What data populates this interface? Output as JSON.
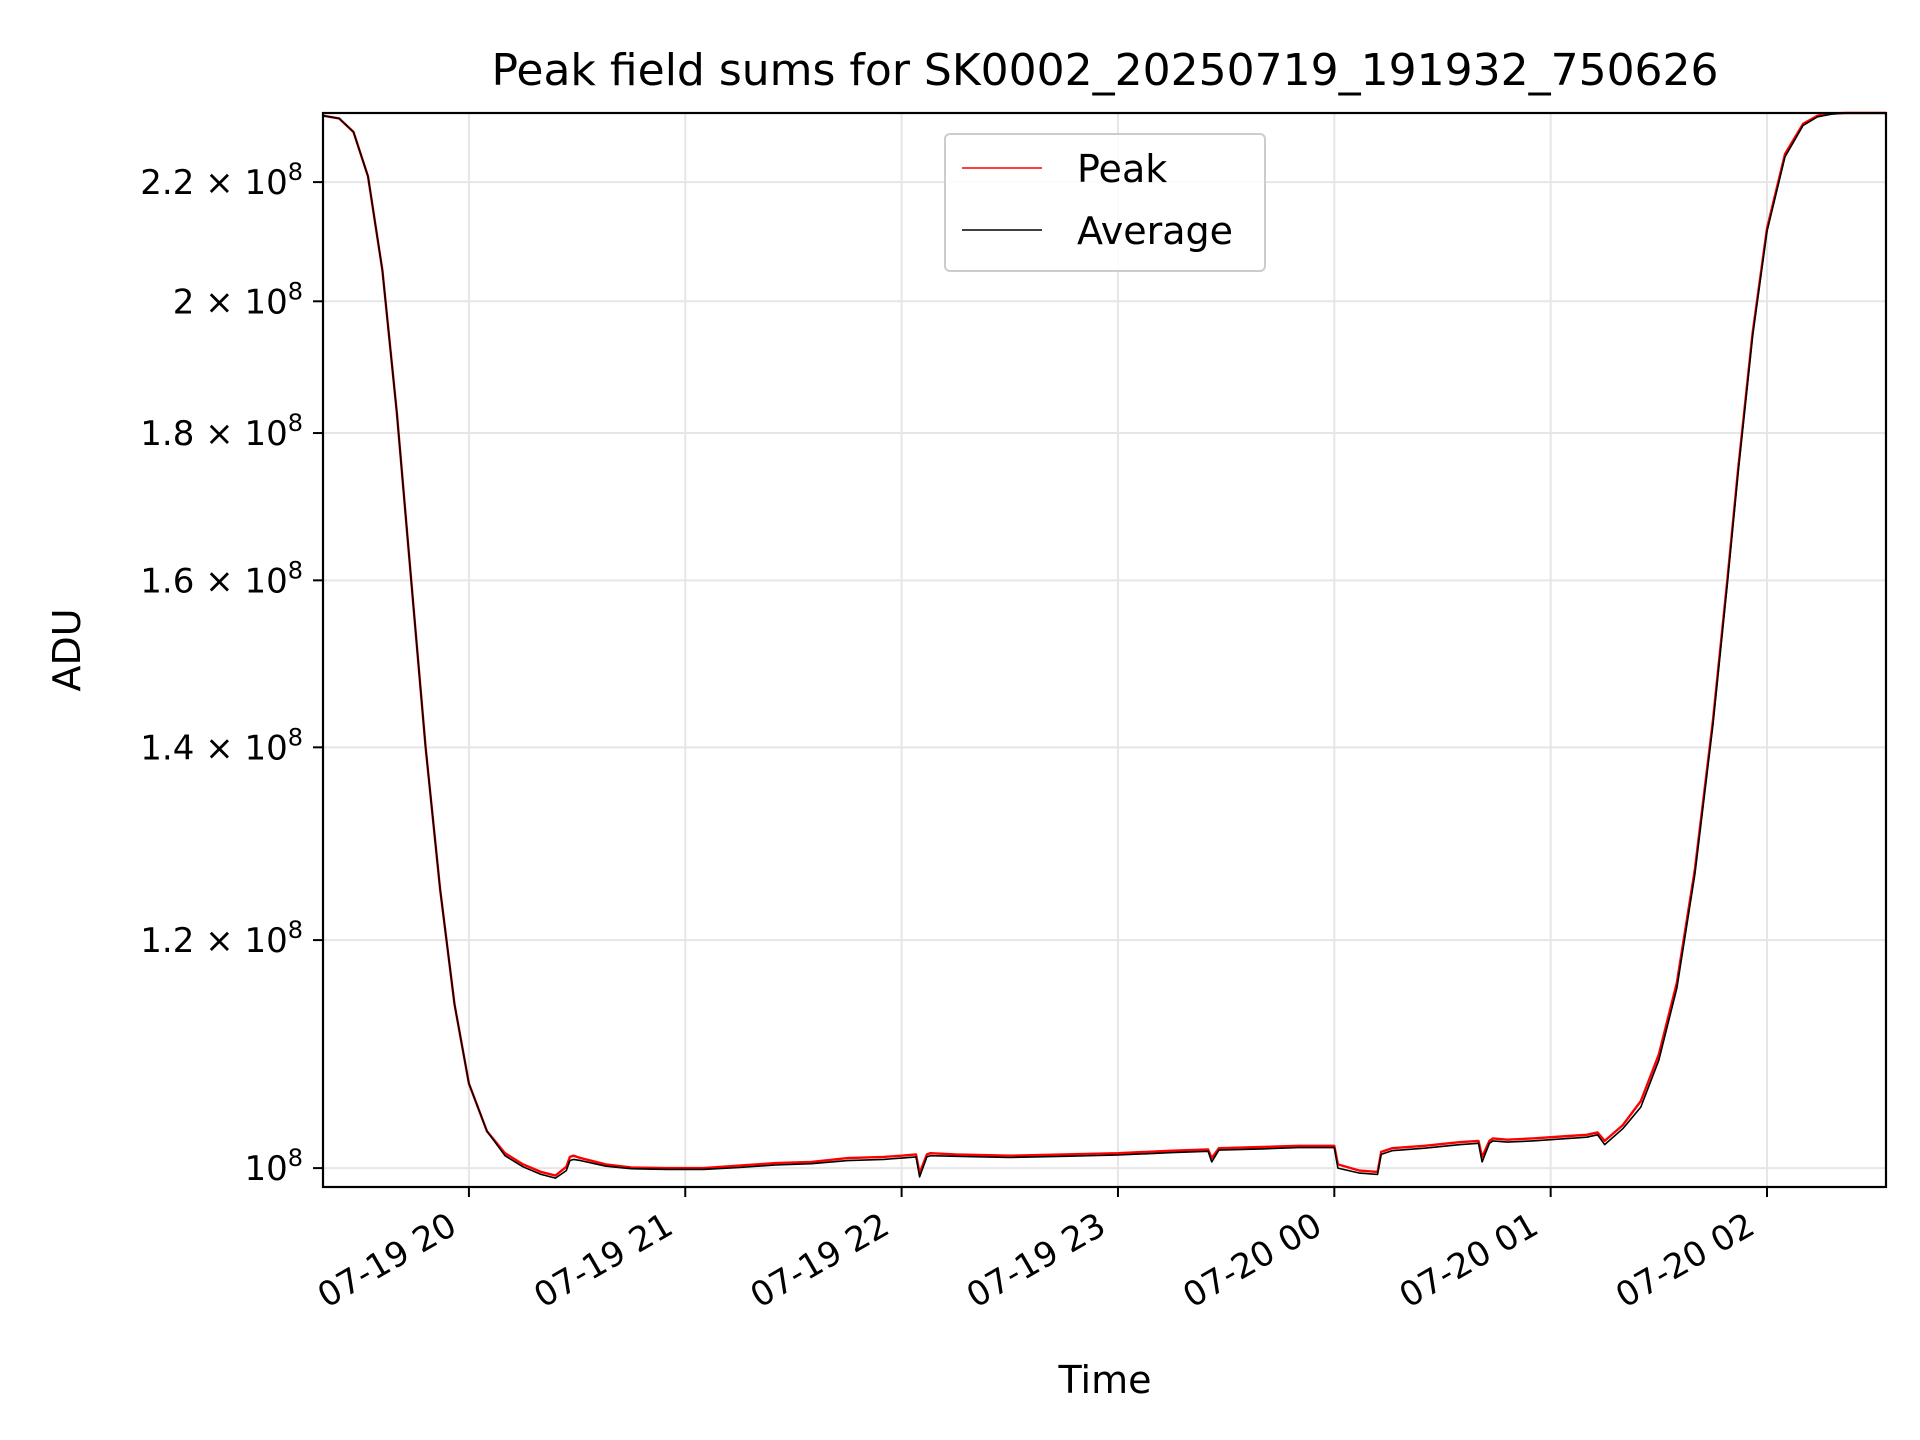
{
  "chart_data": {
    "type": "line",
    "title": "Peak field sums for SK0002_20250719_191932_750626",
    "xlabel": "Time",
    "ylabel": "ADU",
    "y_scale": "log",
    "ylim": [
      98500000,
      232500000
    ],
    "xlim": [
      "2025-07-19 19:19:32",
      "2025-07-20 02:33:00"
    ],
    "x_ticks": [
      {
        "label": "07-19 20",
        "value": "2025-07-19 20:00:00"
      },
      {
        "label": "07-19 21",
        "value": "2025-07-19 21:00:00"
      },
      {
        "label": "07-19 22",
        "value": "2025-07-19 22:00:00"
      },
      {
        "label": "07-19 23",
        "value": "2025-07-19 23:00:00"
      },
      {
        "label": "07-20 00",
        "value": "2025-07-20 00:00:00"
      },
      {
        "label": "07-20 01",
        "value": "2025-07-20 01:00:00"
      },
      {
        "label": "07-20 02",
        "value": "2025-07-20 02:00:00"
      }
    ],
    "y_ticks": [
      {
        "mantissa": "",
        "value": 100000000
      },
      {
        "mantissa": "1.2",
        "value": 120000000
      },
      {
        "mantissa": "1.4",
        "value": 140000000
      },
      {
        "mantissa": "1.6",
        "value": 160000000
      },
      {
        "mantissa": "1.8",
        "value": 180000000
      },
      {
        "mantissa": "2",
        "value": 200000000
      },
      {
        "mantissa": "2.2",
        "value": 220000000
      }
    ],
    "y_tick_base": "10",
    "y_tick_exponent": "8",
    "grid": true,
    "legend": {
      "position": "upper center",
      "entries": [
        "Peak",
        "Average"
      ]
    },
    "series": [
      {
        "name": "Peak",
        "color": "#ff0000",
        "x": [
          "2025-07-19 19:19:32",
          "2025-07-19 19:24:00",
          "2025-07-19 19:28:00",
          "2025-07-19 19:32:00",
          "2025-07-19 19:36:00",
          "2025-07-19 19:40:00",
          "2025-07-19 19:44:00",
          "2025-07-19 19:48:00",
          "2025-07-19 19:52:00",
          "2025-07-19 19:56:00",
          "2025-07-19 20:00:00",
          "2025-07-19 20:05:00",
          "2025-07-19 20:10:00",
          "2025-07-19 20:15:00",
          "2025-07-19 20:20:00",
          "2025-07-19 20:24:00",
          "2025-07-19 20:27:00",
          "2025-07-19 20:28:00",
          "2025-07-19 20:29:00",
          "2025-07-19 20:31:00",
          "2025-07-19 20:38:00",
          "2025-07-19 20:45:00",
          "2025-07-19 20:55:00",
          "2025-07-19 21:05:00",
          "2025-07-19 21:15:00",
          "2025-07-19 21:25:00",
          "2025-07-19 21:35:00",
          "2025-07-19 21:45:00",
          "2025-07-19 21:55:00",
          "2025-07-19 22:00:00",
          "2025-07-19 22:04:00",
          "2025-07-19 22:05:00",
          "2025-07-19 22:07:00",
          "2025-07-19 22:08:00",
          "2025-07-19 22:15:00",
          "2025-07-19 22:30:00",
          "2025-07-19 22:45:00",
          "2025-07-19 23:00:00",
          "2025-07-19 23:15:00",
          "2025-07-19 23:25:00",
          "2025-07-19 23:26:00",
          "2025-07-19 23:28:00",
          "2025-07-19 23:40:00",
          "2025-07-19 23:50:00",
          "2025-07-20 00:00:00",
          "2025-07-20 00:01:00",
          "2025-07-20 00:07:00",
          "2025-07-20 00:12:00",
          "2025-07-20 00:13:00",
          "2025-07-20 00:16:00",
          "2025-07-20 00:25:00",
          "2025-07-20 00:35:00",
          "2025-07-20 00:40:00",
          "2025-07-20 00:41:00",
          "2025-07-20 00:43:00",
          "2025-07-20 00:44:00",
          "2025-07-20 00:48:00",
          "2025-07-20 00:55:00",
          "2025-07-20 01:05:00",
          "2025-07-20 01:10:00",
          "2025-07-20 01:13:00",
          "2025-07-20 01:15:00",
          "2025-07-20 01:20:00",
          "2025-07-20 01:25:00",
          "2025-07-20 01:30:00",
          "2025-07-20 01:35:00",
          "2025-07-20 01:40:00",
          "2025-07-20 01:45:00",
          "2025-07-20 01:49:00",
          "2025-07-20 01:52:00",
          "2025-07-20 01:56:00",
          "2025-07-20 02:00:00",
          "2025-07-20 02:05:00",
          "2025-07-20 02:10:00",
          "2025-07-20 02:14:00",
          "2025-07-20 02:18:00",
          "2025-07-20 02:22:00",
          "2025-07-20 02:33:00"
        ],
        "y": [
          232000000,
          231500000,
          229000000,
          221000000,
          205000000,
          183000000,
          160000000,
          140000000,
          125000000,
          114000000,
          107000000,
          103000000,
          101200000,
          100300000,
          99700000,
          99400000,
          100100000,
          100900000,
          101000000,
          100800000,
          100300000,
          100050000,
          100000000,
          100000000,
          100200000,
          100400000,
          100500000,
          100800000,
          100900000,
          101000000,
          101100000,
          99600000,
          101100000,
          101200000,
          101100000,
          101000000,
          101100000,
          101200000,
          101400000,
          101500000,
          100800000,
          101600000,
          101700000,
          101800000,
          101800000,
          100300000,
          99800000,
          99700000,
          101300000,
          101600000,
          101800000,
          102100000,
          102200000,
          100900000,
          102200000,
          102400000,
          102300000,
          102400000,
          102600000,
          102700000,
          102900000,
          102200000,
          103500000,
          105500000,
          109500000,
          116000000,
          127000000,
          143000000,
          160000000,
          175000000,
          195000000,
          212000000,
          225000000,
          230500000,
          232000000,
          232400000,
          232500000,
          232500000
        ]
      },
      {
        "name": "Average",
        "color": "#000000",
        "x": [
          "2025-07-19 19:19:32",
          "2025-07-19 19:24:00",
          "2025-07-19 19:28:00",
          "2025-07-19 19:32:00",
          "2025-07-19 19:36:00",
          "2025-07-19 19:40:00",
          "2025-07-19 19:44:00",
          "2025-07-19 19:48:00",
          "2025-07-19 19:52:00",
          "2025-07-19 19:56:00",
          "2025-07-19 20:00:00",
          "2025-07-19 20:05:00",
          "2025-07-19 20:10:00",
          "2025-07-19 20:15:00",
          "2025-07-19 20:20:00",
          "2025-07-19 20:24:00",
          "2025-07-19 20:27:00",
          "2025-07-19 20:28:00",
          "2025-07-19 20:29:00",
          "2025-07-19 20:31:00",
          "2025-07-19 20:38:00",
          "2025-07-19 20:45:00",
          "2025-07-19 20:55:00",
          "2025-07-19 21:05:00",
          "2025-07-19 21:15:00",
          "2025-07-19 21:25:00",
          "2025-07-19 21:35:00",
          "2025-07-19 21:45:00",
          "2025-07-19 21:55:00",
          "2025-07-19 22:00:00",
          "2025-07-19 22:04:00",
          "2025-07-19 22:05:00",
          "2025-07-19 22:07:00",
          "2025-07-19 22:08:00",
          "2025-07-19 22:15:00",
          "2025-07-19 22:30:00",
          "2025-07-19 22:45:00",
          "2025-07-19 23:00:00",
          "2025-07-19 23:15:00",
          "2025-07-19 23:25:00",
          "2025-07-19 23:26:00",
          "2025-07-19 23:28:00",
          "2025-07-19 23:40:00",
          "2025-07-19 23:50:00",
          "2025-07-20 00:00:00",
          "2025-07-20 00:01:00",
          "2025-07-20 00:07:00",
          "2025-07-20 00:12:00",
          "2025-07-20 00:13:00",
          "2025-07-20 00:16:00",
          "2025-07-20 00:25:00",
          "2025-07-20 00:35:00",
          "2025-07-20 00:40:00",
          "2025-07-20 00:41:00",
          "2025-07-20 00:43:00",
          "2025-07-20 00:44:00",
          "2025-07-20 00:48:00",
          "2025-07-20 00:55:00",
          "2025-07-20 01:05:00",
          "2025-07-20 01:10:00",
          "2025-07-20 01:13:00",
          "2025-07-20 01:15:00",
          "2025-07-20 01:20:00",
          "2025-07-20 01:25:00",
          "2025-07-20 01:30:00",
          "2025-07-20 01:35:00",
          "2025-07-20 01:40:00",
          "2025-07-20 01:45:00",
          "2025-07-20 01:49:00",
          "2025-07-20 01:52:00",
          "2025-07-20 01:56:00",
          "2025-07-20 02:00:00",
          "2025-07-20 02:05:00",
          "2025-07-20 02:10:00",
          "2025-07-20 02:14:00",
          "2025-07-20 02:18:00",
          "2025-07-20 02:22:00",
          "2025-07-20 02:33:00"
        ],
        "y": [
          232000000,
          231500000,
          229000000,
          221000000,
          205000000,
          183000000,
          160000000,
          140000000,
          125000000,
          114000000,
          107000000,
          103000000,
          101000000,
          100100000,
          99500000,
          99200000,
          99800000,
          100600000,
          100700000,
          100600000,
          100150000,
          99950000,
          99900000,
          99900000,
          100050000,
          100250000,
          100350000,
          100600000,
          100700000,
          100800000,
          100900000,
          99300000,
          100900000,
          101000000,
          100950000,
          100850000,
          100950000,
          101050000,
          101250000,
          101350000,
          100500000,
          101450000,
          101550000,
          101650000,
          101650000,
          100000000,
          99600000,
          99500000,
          101100000,
          101400000,
          101600000,
          101900000,
          102000000,
          100500000,
          102000000,
          102200000,
          102100000,
          102200000,
          102400000,
          102500000,
          102700000,
          101900000,
          103200000,
          105000000,
          109000000,
          115500000,
          126500000,
          142500000,
          159500000,
          174500000,
          194500000,
          211500000,
          224500000,
          230200000,
          231800000,
          232300000,
          232500000,
          232500000
        ]
      }
    ]
  }
}
